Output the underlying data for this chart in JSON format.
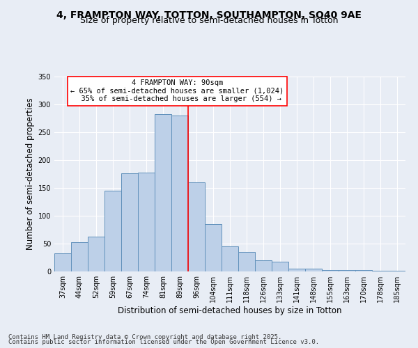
{
  "title_line1": "4, FRAMPTON WAY, TOTTON, SOUTHAMPTON, SO40 9AE",
  "title_line2": "Size of property relative to semi-detached houses in Totton",
  "xlabel": "Distribution of semi-detached houses by size in Totton",
  "ylabel": "Number of semi-detached properties",
  "categories": [
    "37sqm",
    "44sqm",
    "52sqm",
    "59sqm",
    "67sqm",
    "74sqm",
    "81sqm",
    "89sqm",
    "96sqm",
    "104sqm",
    "111sqm",
    "118sqm",
    "126sqm",
    "133sqm",
    "141sqm",
    "148sqm",
    "155sqm",
    "163sqm",
    "170sqm",
    "178sqm",
    "185sqm"
  ],
  "bar_values": [
    33,
    52,
    62,
    145,
    176,
    178,
    283,
    280,
    160,
    85,
    45,
    35,
    20,
    18,
    5,
    5,
    3,
    2,
    2,
    1,
    1
  ],
  "bar_color": "#bdd0e8",
  "bar_edge_color": "#6090bb",
  "vline_position": 7.5,
  "vline_color": "red",
  "annotation_text": "4 FRAMPTON WAY: 90sqm\n← 65% of semi-detached houses are smaller (1,024)\n  35% of semi-detached houses are larger (554) →",
  "annotation_box_color": "white",
  "annotation_box_edge": "red",
  "ylim": [
    0,
    350
  ],
  "yticks": [
    0,
    50,
    100,
    150,
    200,
    250,
    300,
    350
  ],
  "footer_line1": "Contains HM Land Registry data © Crown copyright and database right 2025.",
  "footer_line2": "Contains public sector information licensed under the Open Government Licence v3.0.",
  "background_color": "#e8edf5",
  "plot_background": "#e8edf5",
  "grid_color": "white",
  "title_fontsize": 10,
  "subtitle_fontsize": 9,
  "axis_label_fontsize": 8.5,
  "tick_fontsize": 7,
  "footer_fontsize": 6.5
}
